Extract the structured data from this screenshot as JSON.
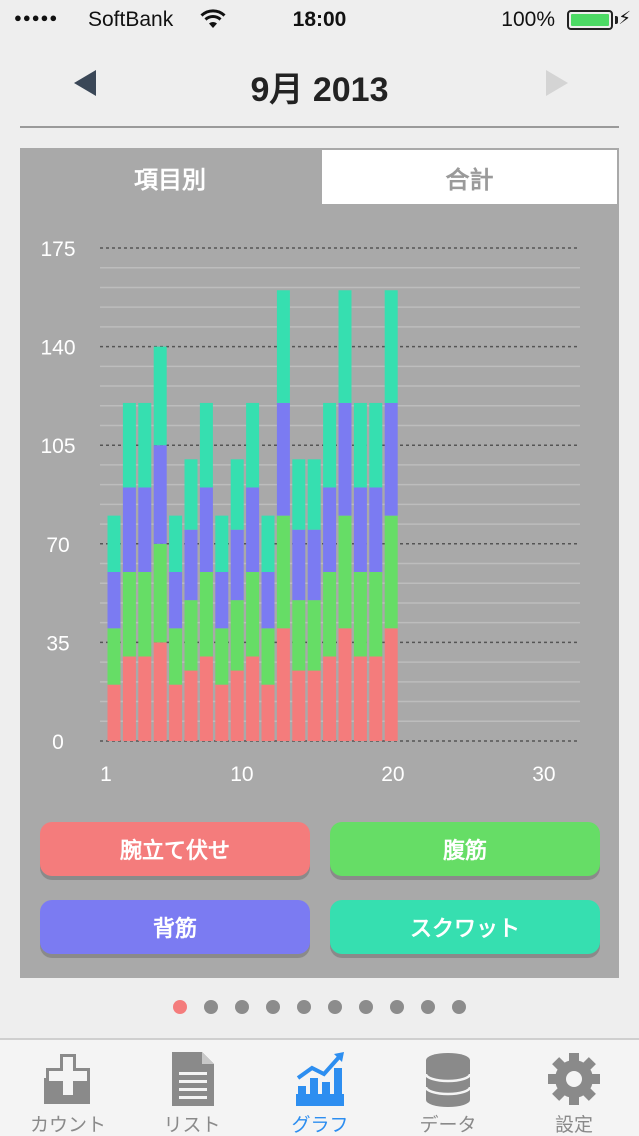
{
  "status_bar": {
    "signal": "●●●●●",
    "carrier": "SoftBank",
    "time": "18:00",
    "battery": "100%",
    "battery_level": 1.0
  },
  "header": {
    "month_label": "9月 2013"
  },
  "tabs": [
    {
      "label": "項目別",
      "selected": true
    },
    {
      "label": "合計",
      "selected": false
    }
  ],
  "chart_data": {
    "type": "bar",
    "stacked": true,
    "y_ticks": [
      "175",
      "140",
      "105",
      "70",
      "35",
      "0"
    ],
    "x_ticks": [
      "1",
      "10",
      "20",
      "30"
    ],
    "ylim": [
      0,
      175
    ],
    "xlim": [
      1,
      30
    ],
    "grid": "dashed lines at each labeled tick, thin solid lines between",
    "categories": [
      1,
      2,
      3,
      4,
      5,
      6,
      7,
      8,
      9,
      10,
      11,
      12,
      13,
      14,
      15,
      16,
      17,
      18,
      19
    ],
    "series": [
      {
        "name": "腕立て伏せ",
        "color": "#f47c7c",
        "values": [
          20,
          30,
          30,
          35,
          20,
          25,
          30,
          20,
          25,
          30,
          20,
          40,
          25,
          25,
          30,
          40,
          30,
          30,
          40
        ]
      },
      {
        "name": "腹筋",
        "color": "#66dd66",
        "values": [
          20,
          30,
          30,
          35,
          20,
          25,
          30,
          20,
          25,
          30,
          20,
          40,
          25,
          25,
          30,
          40,
          30,
          30,
          40
        ]
      },
      {
        "name": "背筋",
        "color": "#7b7bf2",
        "values": [
          20,
          30,
          30,
          35,
          20,
          25,
          30,
          20,
          25,
          30,
          20,
          40,
          25,
          25,
          30,
          40,
          30,
          30,
          40
        ]
      },
      {
        "name": "スクワット",
        "color": "#36dfb0",
        "values": [
          20,
          30,
          30,
          35,
          20,
          25,
          30,
          20,
          25,
          30,
          20,
          40,
          25,
          25,
          30,
          40,
          30,
          30,
          40
        ]
      }
    ]
  },
  "legend_buttons": [
    {
      "label": "腕立て伏せ",
      "color": "#f47c7c"
    },
    {
      "label": "腹筋",
      "color": "#66dd66"
    },
    {
      "label": "背筋",
      "color": "#7b7bf2"
    },
    {
      "label": "スクワット",
      "color": "#36dfb0"
    }
  ],
  "page_dots": {
    "count": 10,
    "active_index": 0,
    "active_color": "#f47c7c",
    "inactive_color": "#8c8c8c"
  },
  "tab_bar": [
    {
      "label": "カウント",
      "icon": "count-plus-icon",
      "active": false
    },
    {
      "label": "リスト",
      "icon": "list-document-icon",
      "active": false
    },
    {
      "label": "グラフ",
      "icon": "graph-icon",
      "active": true
    },
    {
      "label": "データ",
      "icon": "database-icon",
      "active": false
    },
    {
      "label": "設定",
      "icon": "gear-icon",
      "active": false
    }
  ],
  "colors": {
    "accent": "#2d8ef0",
    "card_bg": "#a9a9a9",
    "page_bg": "#eeeeee"
  }
}
